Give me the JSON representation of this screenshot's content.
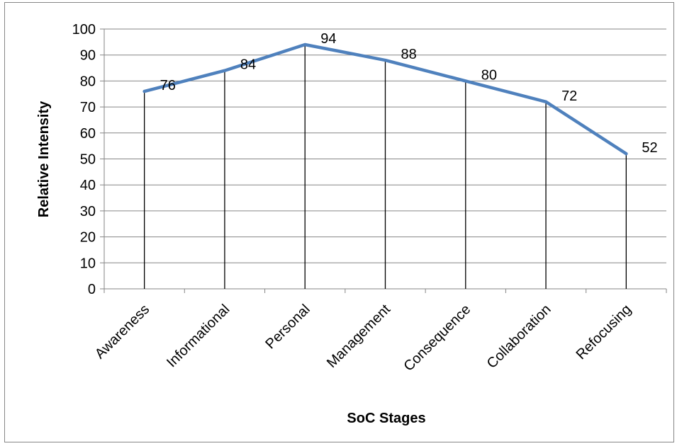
{
  "chart_data": {
    "type": "line",
    "title": "",
    "xlabel": "SoC Stages",
    "ylabel": "Relative Intensity",
    "categories": [
      "Awareness",
      "Informational",
      "Personal",
      "Management",
      "Consequence",
      "Collaboration",
      "Refocusing"
    ],
    "series": [
      {
        "values": [
          76,
          84,
          94,
          88,
          80,
          72,
          52
        ],
        "color": "#4F81BD"
      }
    ],
    "ylim": [
      0,
      100
    ],
    "yticks": [
      0,
      10,
      20,
      30,
      40,
      50,
      60,
      70,
      80,
      90,
      100
    ],
    "grid": true,
    "drop_lines": true,
    "data_labels": true,
    "legend": "none"
  }
}
